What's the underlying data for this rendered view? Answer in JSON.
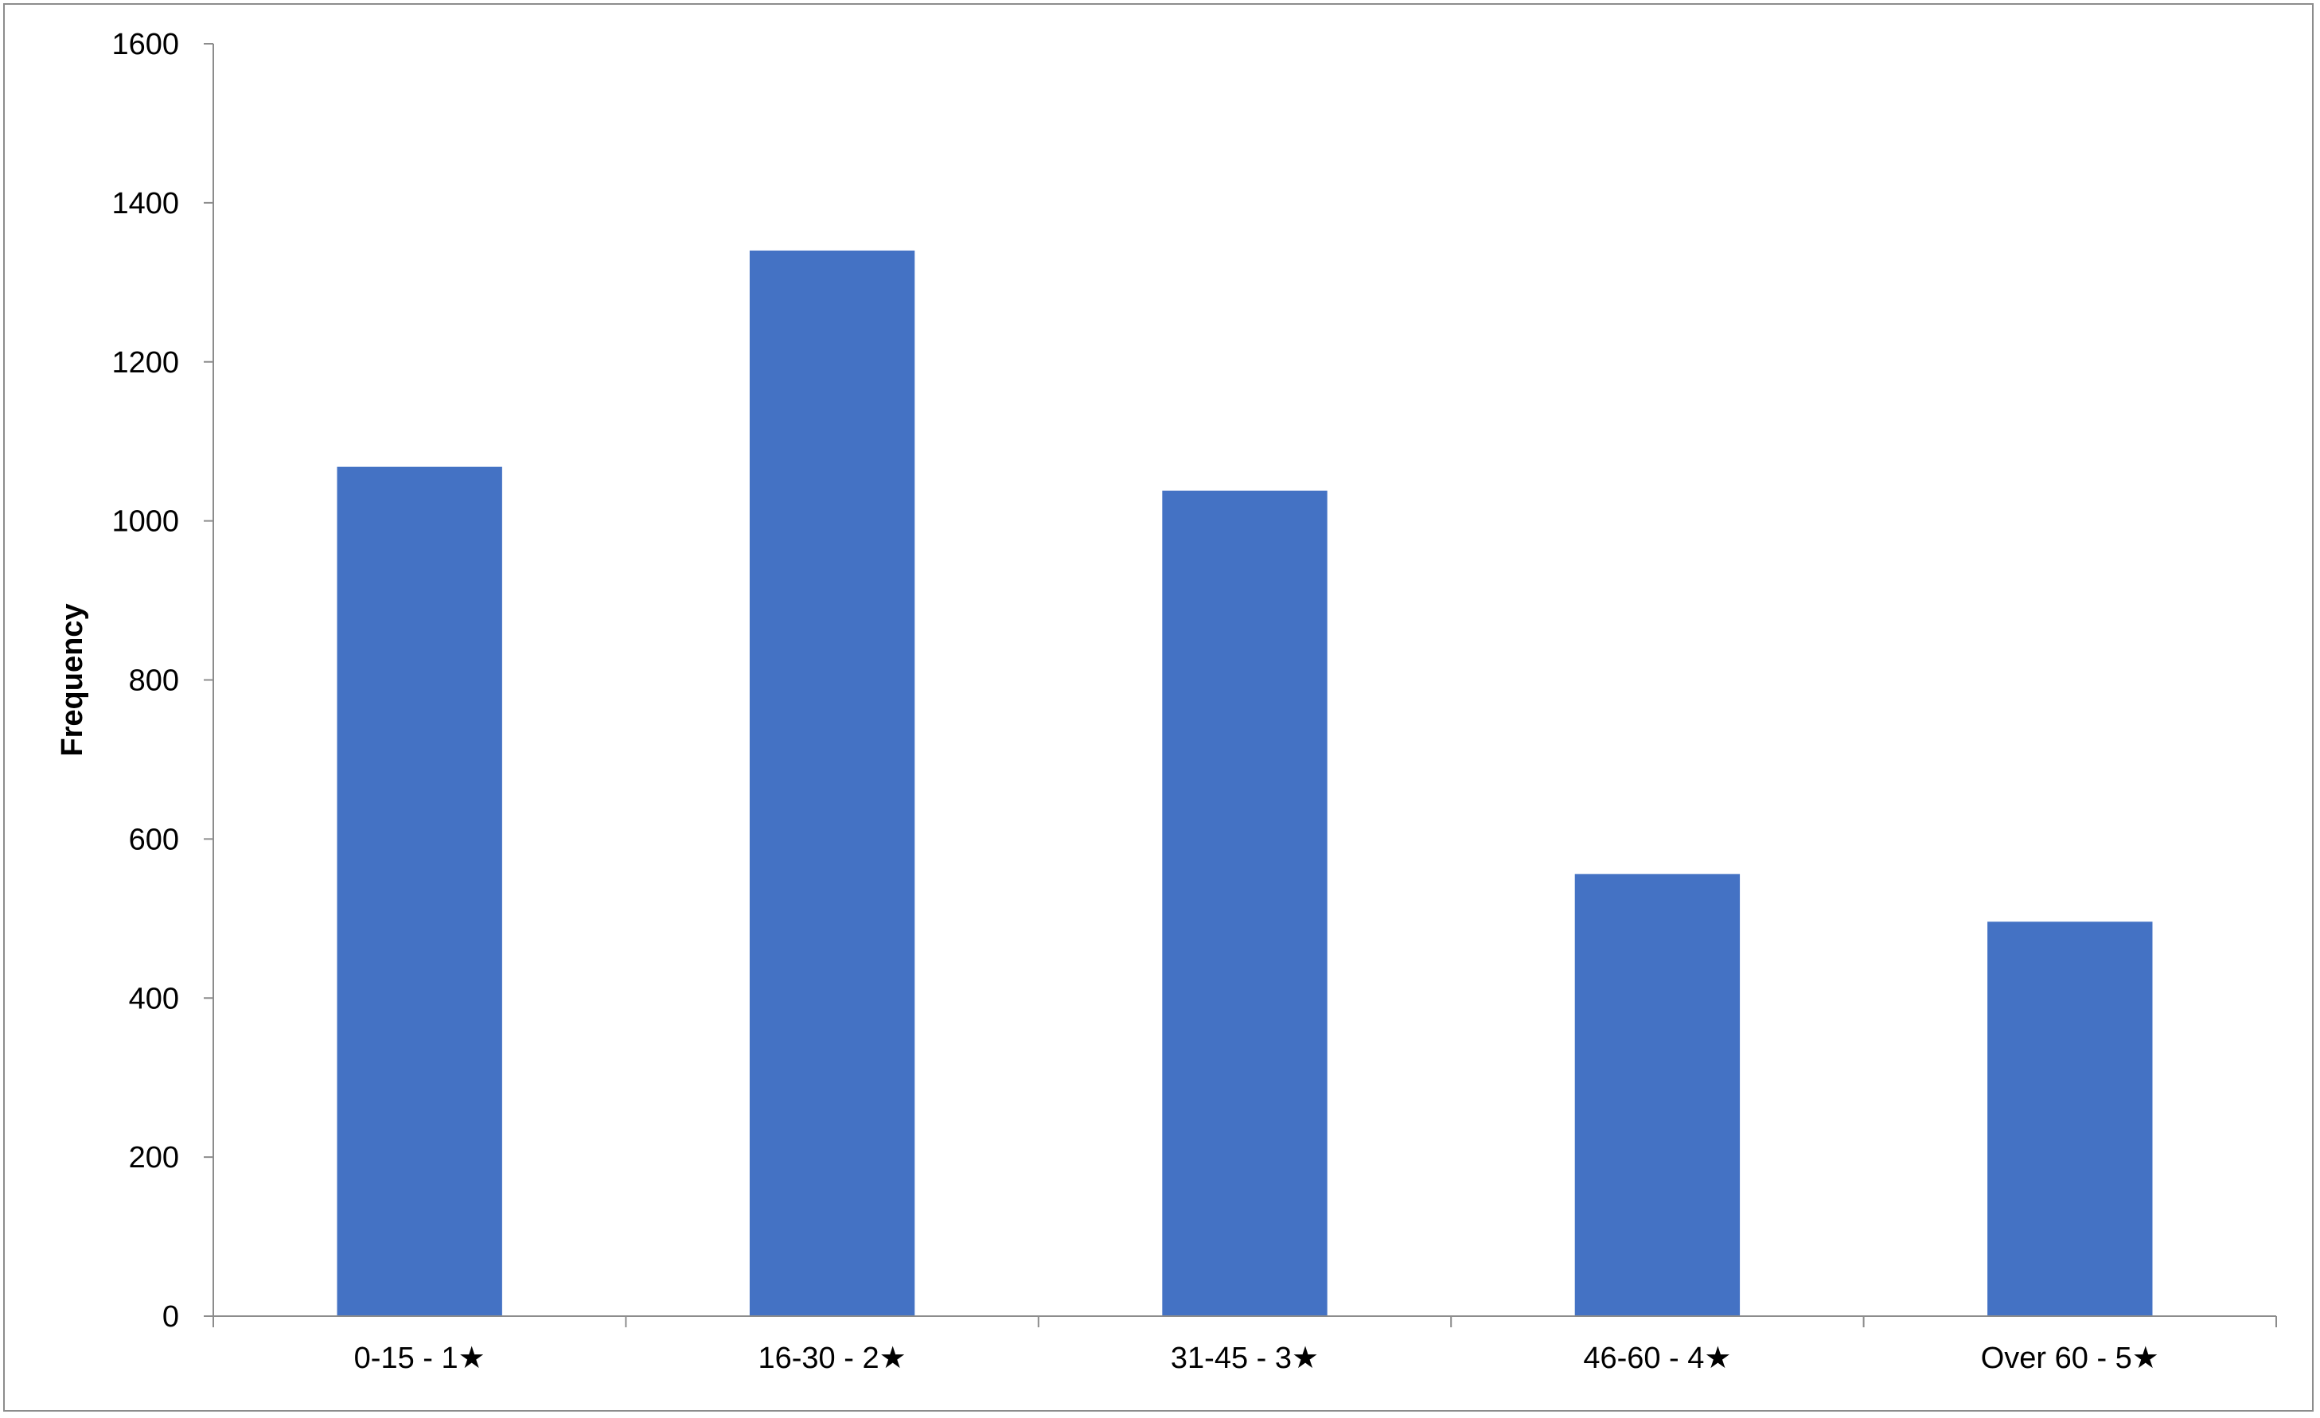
{
  "chart_data": {
    "type": "bar",
    "categories": [
      "0-15 - 1★",
      "16-30 - 2★",
      "31-45 - 3★",
      "46-60 - 4★",
      "Over 60 - 5★"
    ],
    "values": [
      1068,
      1340,
      1038,
      556,
      496
    ],
    "title": "",
    "xlabel": "",
    "ylabel": "Frequency",
    "ylim": [
      0,
      1600
    ],
    "yticks": [
      0,
      200,
      400,
      600,
      800,
      1000,
      1200,
      1400,
      1600
    ],
    "grid": false,
    "legend": "none",
    "bar_color": "#4472c4"
  }
}
